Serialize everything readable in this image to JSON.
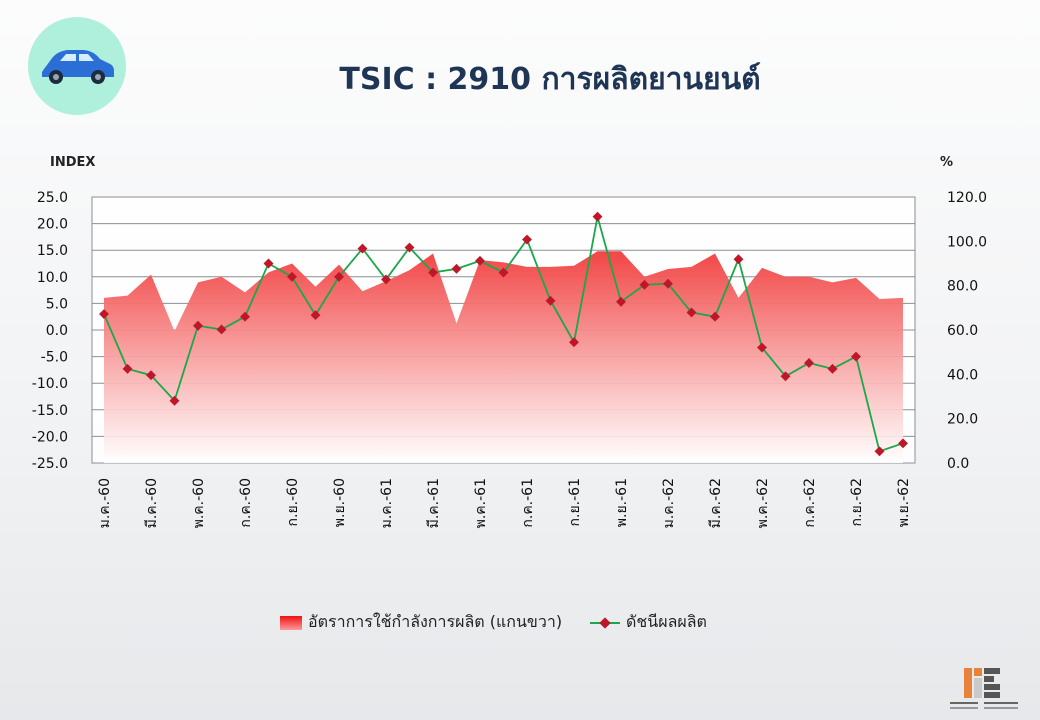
{
  "header": {
    "title": "TSIC : 2910 การผลิตยานยนต์",
    "icon": "car-icon"
  },
  "axes": {
    "left_unit": "INDEX",
    "right_unit": "%"
  },
  "legend": {
    "area_label": "อัตราการใช้กำลังการผลิต (แกนขวา)",
    "line_label": "ดัชนีผลผลิต"
  },
  "colors": {
    "area": "#ee1111",
    "line": "#1aa84a",
    "marker": "#c0162a",
    "title": "#1f3556",
    "icon_bg": "#aef0dc",
    "car": "#2b6fd6"
  },
  "chart_data": {
    "type": "line",
    "x": [
      "ม.ค.-60",
      "ก.พ.-60",
      "มี.ค.-60",
      "เม.ย.-60",
      "พ.ค.-60",
      "มิ.ย.-60",
      "ก.ค.-60",
      "ส.ค.-60",
      "ก.ย.-60",
      "ต.ค.-60",
      "พ.ย.-60",
      "ธ.ค.-60",
      "ม.ค.-61",
      "ก.พ.-61",
      "มี.ค.-61",
      "เม.ย.-61",
      "พ.ค.-61",
      "มิ.ย.-61",
      "ก.ค.-61",
      "ส.ค.-61",
      "ก.ย.-61",
      "ต.ค.-61",
      "พ.ย.-61",
      "ธ.ค.-61",
      "ม.ค.-62",
      "ก.พ.-62",
      "มี.ค.-62",
      "เม.ย.-62",
      "พ.ค.-62",
      "มิ.ย.-62",
      "ก.ค.-62",
      "ส.ค.-62",
      "ก.ย.-62",
      "ต.ค.-62",
      "พ.ย.-62"
    ],
    "x_tick_labels": [
      "ม.ค.-60",
      "มี.ค.-60",
      "พ.ค.-60",
      "ก.ค.-60",
      "ก.ย.-60",
      "พ.ย.-60",
      "ม.ค.-61",
      "มี.ค.-61",
      "พ.ค.-61",
      "ก.ค.-61",
      "ก.ย.-61",
      "พ.ย.-61",
      "ม.ค.-62",
      "มี.ค.-62",
      "พ.ค.-62",
      "ก.ค.-62",
      "ก.ย.-62",
      "พ.ย.-62"
    ],
    "series": [
      {
        "name": "อัตราการใช้กำลังการผลิต (แกนขวา)",
        "type": "area",
        "axis": "right",
        "values": [
          74.5,
          75.5,
          85.0,
          59.5,
          81.5,
          84.0,
          77.0,
          86.0,
          90.0,
          79.5,
          89.5,
          77.5,
          82.0,
          87.0,
          94.5,
          63.0,
          91.5,
          90.5,
          88.5,
          88.5,
          89.0,
          95.5,
          95.5,
          84.0,
          87.5,
          88.5,
          94.5,
          74.5,
          88.0,
          84.0,
          84.0,
          81.5,
          83.5,
          74.0,
          74.5
        ]
      },
      {
        "name": "ดัชนีผลผลิต",
        "type": "line",
        "axis": "left",
        "values": [
          3.0,
          -7.3,
          -8.5,
          -13.3,
          0.8,
          0.1,
          2.5,
          12.5,
          10.0,
          2.8,
          10.0,
          15.3,
          9.5,
          15.5,
          10.8,
          11.5,
          13.0,
          10.8,
          17.0,
          5.5,
          -2.3,
          21.3,
          5.3,
          8.5,
          8.7,
          3.3,
          2.5,
          13.3,
          -3.3,
          -8.7,
          -6.2,
          -7.3,
          -5.0,
          -22.8,
          -21.3
        ]
      }
    ],
    "y_left": {
      "min": -25,
      "max": 25,
      "step": 5,
      "ticks": [
        "25.0",
        "20.0",
        "15.0",
        "10.0",
        "5.0",
        "0.0",
        "-5.0",
        "-10.0",
        "-15.0",
        "-20.0",
        "-25.0"
      ]
    },
    "y_right": {
      "min": 0,
      "max": 120,
      "step": 20,
      "ticks": [
        "120.0",
        "100.0",
        "80.0",
        "60.0",
        "40.0",
        "20.0",
        "0.0"
      ]
    },
    "grid": true,
    "legend_position": "bottom"
  }
}
